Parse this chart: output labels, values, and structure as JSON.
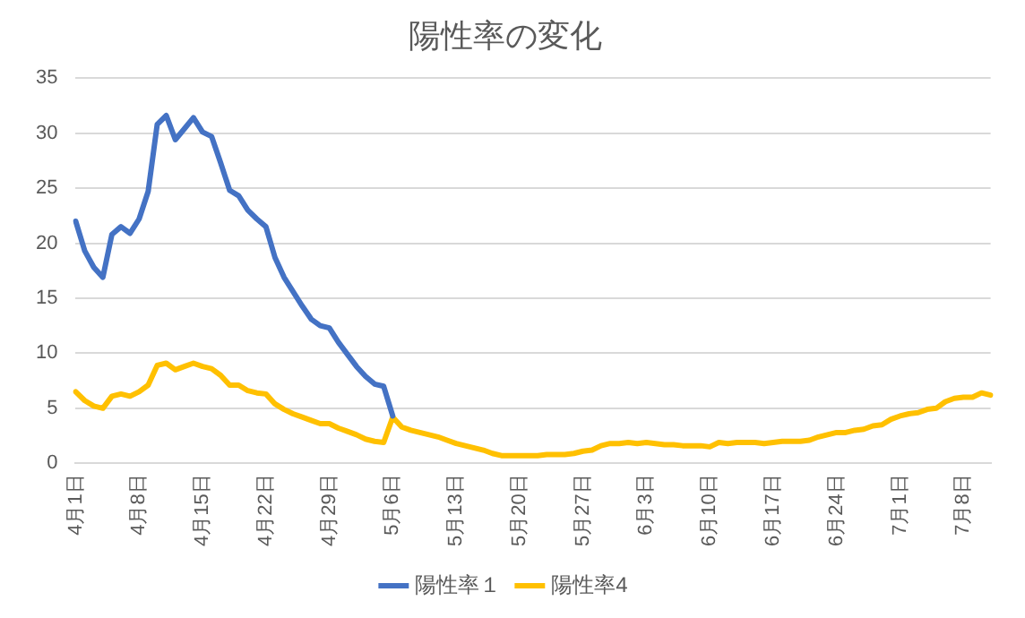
{
  "chart_data": {
    "type": "line",
    "title": "陽性率の変化",
    "categories": [
      "4月1日",
      null,
      null,
      null,
      null,
      null,
      null,
      "4月8日",
      null,
      null,
      null,
      null,
      null,
      null,
      "4月15日",
      null,
      null,
      null,
      null,
      null,
      null,
      "4月22日",
      null,
      null,
      null,
      null,
      null,
      null,
      "4月29日",
      null,
      null,
      null,
      null,
      null,
      null,
      "5月6日",
      null,
      null,
      null,
      null,
      null,
      null,
      "5月13日",
      null,
      null,
      null,
      null,
      null,
      null,
      "5月20日",
      null,
      null,
      null,
      null,
      null,
      null,
      "5月27日",
      null,
      null,
      null,
      null,
      null,
      null,
      "6月3日",
      null,
      null,
      null,
      null,
      null,
      null,
      "6月10日",
      null,
      null,
      null,
      null,
      null,
      null,
      "6月17日",
      null,
      null,
      null,
      null,
      null,
      null,
      "6月24日",
      null,
      null,
      null,
      null,
      null,
      null,
      "7月1日",
      null,
      null,
      null,
      null,
      null,
      null,
      "7月8日",
      null,
      null,
      null
    ],
    "series": [
      {
        "name": "陽性率１",
        "color": "#4472c4",
        "values": [
          22.0,
          19.3,
          17.8,
          16.9,
          20.8,
          21.5,
          20.9,
          22.2,
          24.7,
          30.8,
          31.6,
          29.4,
          30.4,
          31.4,
          30.1,
          29.7,
          27.3,
          24.8,
          24.3,
          23.0,
          22.2,
          21.5,
          18.7,
          16.9,
          15.6,
          14.3,
          13.1,
          12.5,
          12.3,
          11.0,
          9.9,
          8.8,
          7.9,
          7.2,
          7.0,
          4.3,
          null,
          null,
          null,
          null,
          null,
          null,
          null,
          null,
          null,
          null,
          null,
          null,
          null,
          null,
          null,
          null,
          null,
          null,
          null,
          null,
          null,
          null,
          null,
          null,
          null,
          null,
          null,
          null,
          null,
          null,
          null,
          null,
          null,
          null,
          null,
          null,
          null,
          null,
          null,
          null,
          null,
          null,
          null,
          null,
          null,
          null,
          null,
          null,
          null,
          null,
          null,
          null,
          null,
          null,
          null,
          null,
          null,
          null,
          null,
          null,
          null,
          null,
          null,
          null,
          null,
          null
        ]
      },
      {
        "name": "陽性率4",
        "color": "#ffc000",
        "values": [
          6.5,
          5.7,
          5.2,
          5.0,
          6.1,
          6.3,
          6.1,
          6.5,
          7.1,
          8.9,
          9.1,
          8.5,
          8.8,
          9.1,
          8.8,
          8.6,
          8.0,
          7.1,
          7.1,
          6.6,
          6.4,
          6.3,
          5.4,
          4.9,
          4.5,
          4.2,
          3.9,
          3.6,
          3.6,
          3.2,
          2.9,
          2.6,
          2.2,
          2.0,
          1.9,
          4.2,
          3.3,
          3.0,
          2.8,
          2.6,
          2.4,
          2.1,
          1.8,
          1.6,
          1.4,
          1.2,
          0.9,
          0.7,
          0.7,
          0.7,
          0.7,
          0.7,
          0.8,
          0.8,
          0.8,
          0.9,
          1.1,
          1.2,
          1.6,
          1.8,
          1.8,
          1.9,
          1.8,
          1.9,
          1.8,
          1.7,
          1.7,
          1.6,
          1.6,
          1.6,
          1.5,
          1.9,
          1.8,
          1.9,
          1.9,
          1.9,
          1.8,
          1.9,
          2.0,
          2.0,
          2.0,
          2.1,
          2.4,
          2.6,
          2.8,
          2.8,
          3.0,
          3.1,
          3.4,
          3.5,
          4.0,
          4.3,
          4.5,
          4.6,
          4.9,
          5.0,
          5.6,
          5.9,
          6.0,
          6.0,
          6.4,
          6.2
        ]
      }
    ],
    "ylim": [
      0,
      35
    ],
    "yticks": [
      0,
      5,
      10,
      15,
      20,
      25,
      30,
      35
    ],
    "grid": "y",
    "legend": "bottom",
    "marker": "none",
    "line_style": "solid"
  }
}
